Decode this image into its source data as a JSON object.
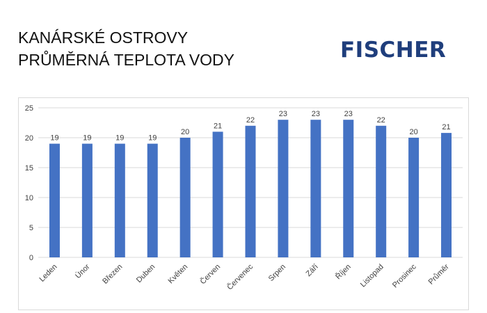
{
  "title_lines": [
    "KANÁRSKÉ OSTROVY",
    "PRŮMĚRNÁ TEPLOTA VODY"
  ],
  "logo": "FISCHER",
  "chart_data": {
    "type": "bar",
    "categories": [
      "Leden",
      "Únor",
      "Březen",
      "Duben",
      "Květen",
      "Červen",
      "Červenec",
      "Srpen",
      "Září",
      "Říjen",
      "Listopad",
      "Prosinec",
      "Průměr"
    ],
    "values": [
      19,
      19,
      19,
      19,
      20,
      21,
      22,
      23,
      23,
      23,
      22,
      20,
      20.8
    ],
    "data_labels": [
      "19",
      "19",
      "19",
      "19",
      "20",
      "21",
      "22",
      "23",
      "23",
      "23",
      "22",
      "20",
      "21"
    ],
    "ylim": [
      0,
      25
    ],
    "yticks": [
      0,
      5,
      10,
      15,
      20,
      25
    ],
    "grid": true,
    "bar_color": "#4472c4"
  }
}
